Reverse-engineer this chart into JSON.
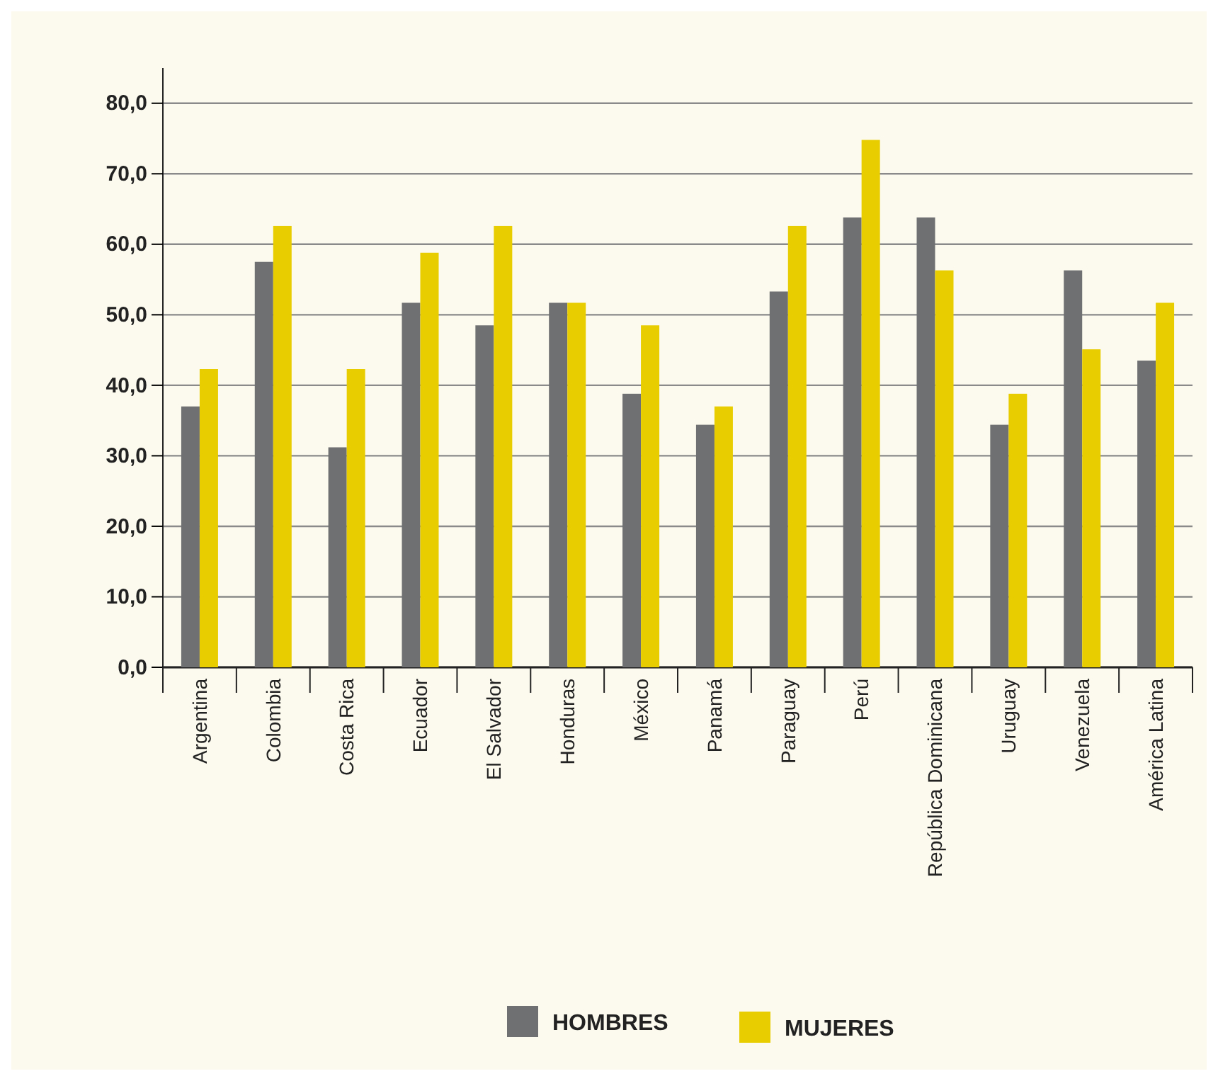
{
  "chart_data": {
    "type": "bar",
    "categories": [
      "Argentina",
      "Colombia",
      "Costa Rica",
      "Ecuador",
      "El Salvador",
      "Honduras",
      "México",
      "Panamá",
      "Paraguay",
      "Perú",
      "República Dominicana",
      "Uruguay",
      "Venezuela",
      "América Latina"
    ],
    "series": [
      {
        "name": "HOMBRES",
        "color": "#6f7072",
        "values": [
          37.0,
          57.5,
          31.2,
          51.7,
          48.5,
          51.7,
          38.8,
          34.4,
          53.3,
          63.8,
          63.8,
          34.4,
          56.3,
          43.5
        ]
      },
      {
        "name": "MUJERES",
        "color": "#e8cd00",
        "values": [
          42.3,
          62.6,
          42.3,
          58.8,
          62.6,
          51.7,
          48.5,
          37.0,
          62.6,
          74.8,
          56.3,
          38.8,
          45.1,
          51.7
        ]
      }
    ],
    "ylim": [
      0,
      85
    ],
    "yticks": [
      {
        "value": 0,
        "label": "0,0"
      },
      {
        "value": 10,
        "label": "10,0"
      },
      {
        "value": 20,
        "label": "20,0"
      },
      {
        "value": 30,
        "label": "30,0"
      },
      {
        "value": 40,
        "label": "40,0"
      },
      {
        "value": 50,
        "label": "50,0"
      },
      {
        "value": 60,
        "label": "60,0"
      },
      {
        "value": 70,
        "label": "70,0"
      },
      {
        "value": 80,
        "label": "80,0"
      }
    ],
    "grid": "y",
    "legend": "bottom"
  }
}
